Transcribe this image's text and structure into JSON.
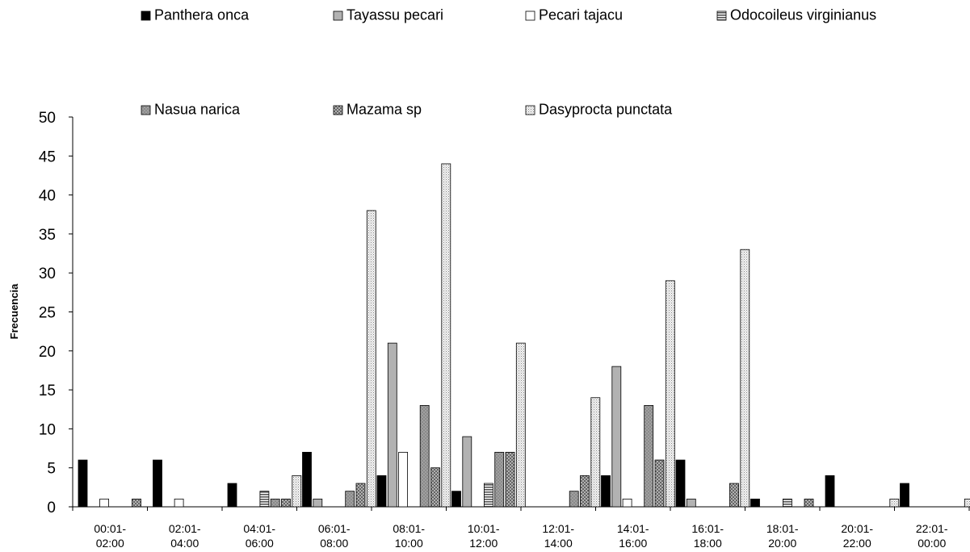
{
  "chart_data": {
    "type": "bar",
    "title": "",
    "xlabel": "",
    "ylabel": "Frecuencia",
    "ylim": [
      0,
      50
    ],
    "yticks": [
      0,
      5,
      10,
      15,
      20,
      25,
      30,
      35,
      40,
      45,
      50
    ],
    "grid": false,
    "legend_position": "top",
    "categories": [
      [
        "00:01-",
        "02:00"
      ],
      [
        "02:01-",
        "04:00"
      ],
      [
        "04:01-",
        "06:00"
      ],
      [
        "06:01-",
        "08:00"
      ],
      [
        "08:01-",
        "10:00"
      ],
      [
        "10:01-",
        "12:00"
      ],
      [
        "12:01-",
        "14:00"
      ],
      [
        "14:01-",
        "16:00"
      ],
      [
        "16:01-",
        "18:00"
      ],
      [
        "18:01-",
        "20:00"
      ],
      [
        "20:01-",
        "22:00"
      ],
      [
        "22:01-",
        "00:00"
      ]
    ],
    "series": [
      {
        "name": "Panthera onca",
        "fill": "solid-black",
        "values": [
          6,
          6,
          3,
          7,
          4,
          2,
          0,
          4,
          6,
          1,
          4,
          3
        ]
      },
      {
        "name": "Tayassu pecari",
        "fill": "solid-gray",
        "values": [
          0,
          0,
          0,
          1,
          21,
          9,
          0,
          18,
          1,
          0,
          0,
          0
        ]
      },
      {
        "name": "Pecari tajacu",
        "fill": "solid-white",
        "values": [
          1,
          1,
          0,
          0,
          7,
          0,
          0,
          1,
          0,
          0,
          0,
          0
        ]
      },
      {
        "name": "Odocoileus virginianus",
        "fill": "horizontal-lines",
        "values": [
          0,
          0,
          2,
          0,
          0,
          3,
          0,
          0,
          0,
          1,
          0,
          0
        ]
      },
      {
        "name": "Nasua narica",
        "fill": "gray-hatch",
        "values": [
          0,
          0,
          1,
          2,
          13,
          7,
          2,
          13,
          0,
          0,
          0,
          0
        ]
      },
      {
        "name": "Mazama sp",
        "fill": "crosshatch",
        "values": [
          1,
          0,
          1,
          3,
          5,
          7,
          4,
          6,
          3,
          1,
          0,
          0
        ]
      },
      {
        "name": "Dasyprocta punctata",
        "fill": "light-dots",
        "values": [
          0,
          0,
          4,
          38,
          44,
          21,
          14,
          29,
          33,
          0,
          1,
          1
        ]
      }
    ]
  }
}
